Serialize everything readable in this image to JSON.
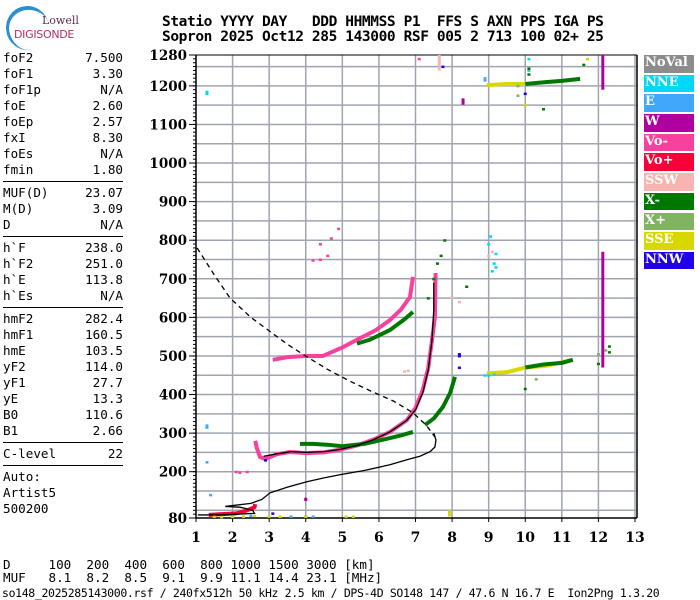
{
  "logo": {
    "line1": "Lowell",
    "line2": "DIGISONDE"
  },
  "header": {
    "line1": "Statio YYYY DAY   DDD HHMMSS P1  FFS S AXN PPS IGA PS",
    "line2": "Sopron 2025 Oct12 285 143000 RSF 005 2 713 100 02+ 25"
  },
  "params": {
    "group1": [
      {
        "label": "foF2",
        "value": "7.500"
      },
      {
        "label": "foF1",
        "value": "3.30"
      },
      {
        "label": "foF1p",
        "value": "N/A"
      },
      {
        "label": "foE",
        "value": "2.60"
      },
      {
        "label": "foEp",
        "value": "2.57"
      },
      {
        "label": "fxI",
        "value": "8.30"
      },
      {
        "label": "foEs",
        "value": "N/A"
      },
      {
        "label": "fmin",
        "value": "1.80"
      }
    ],
    "group2": [
      {
        "label": "MUF(D)",
        "value": "23.07"
      },
      {
        "label": "M(D)",
        "value": "3.09"
      },
      {
        "label": "D",
        "value": "N/A"
      }
    ],
    "group3": [
      {
        "label": "h`F",
        "value": "238.0"
      },
      {
        "label": "h`F2",
        "value": "251.0"
      },
      {
        "label": "h`E",
        "value": "113.8"
      },
      {
        "label": "h`Es",
        "value": "N/A"
      }
    ],
    "group4": [
      {
        "label": "hmF2",
        "value": "282.4"
      },
      {
        "label": "hmF1",
        "value": "160.5"
      },
      {
        "label": "hmE",
        "value": "103.5"
      },
      {
        "label": "yF2",
        "value": "114.0"
      },
      {
        "label": "yF1",
        "value": "27.7"
      },
      {
        "label": "yE",
        "value": "13.3"
      },
      {
        "label": "B0",
        "value": "110.6"
      },
      {
        "label": "B1",
        "value": "2.66"
      }
    ],
    "group5": [
      {
        "label": "C-level",
        "value": "22"
      }
    ],
    "auto": [
      "Auto:",
      "Artist5",
      "500200"
    ]
  },
  "legend": [
    {
      "label": "NoVal",
      "color": "#8c8c8c"
    },
    {
      "label": "NNE",
      "color": "#00d8f8"
    },
    {
      "label": "E",
      "color": "#40a8f8"
    },
    {
      "label": "W",
      "color": "#b000a0"
    },
    {
      "label": "Vo-",
      "color": "#f8409c"
    },
    {
      "label": "Vo+",
      "color": "#f80038"
    },
    {
      "label": "SSW",
      "color": "#f8b4b0"
    },
    {
      "label": "X-",
      "color": "#007800"
    },
    {
      "label": "X+",
      "color": "#80b460"
    },
    {
      "label": "SSE",
      "color": "#d8d800"
    },
    {
      "label": "NNW",
      "color": "#2000e8"
    }
  ],
  "muf_table": {
    "row1": "D     100  200  400  600  800 1000 1500 3000 [km]",
    "row2": "MUF   8.1  8.2  8.5  9.1  9.9 11.1 14.4 23.1 [MHz]"
  },
  "footer": "so148_2025285143000.rsf / 240fx512h 50 kHz 2.5 km / DPS-4D SO148 147 / 47.6 N 16.7 E  Ion2Png 1.3.20",
  "chart_data": {
    "type": "scatter",
    "xlim": [
      1,
      13
    ],
    "ylim": [
      80,
      1280
    ],
    "x_ticks": [
      "1",
      "2",
      "3",
      "4",
      "5",
      "6",
      "7",
      "8",
      "9",
      "10",
      "11",
      "12",
      "13"
    ],
    "y_ticks": [
      "80",
      "200",
      "300",
      "400",
      "500",
      "600",
      "700",
      "800",
      "900",
      "1000",
      "1100",
      "1200",
      "1280"
    ],
    "grid": true,
    "legend_placement": "right",
    "series": [
      {
        "color": "Vo-",
        "kind": "trace",
        "points": [
          [
            2.62,
            280
          ],
          [
            2.66,
            262
          ],
          [
            2.75,
            238
          ],
          [
            2.89,
            233
          ],
          [
            3.2,
            245
          ],
          [
            3.57,
            251
          ],
          [
            4.02,
            248
          ],
          [
            4.5,
            250
          ],
          [
            4.93,
            257
          ],
          [
            5.4,
            268
          ],
          [
            5.84,
            283
          ],
          [
            6.3,
            303
          ],
          [
            6.77,
            334
          ],
          [
            7.0,
            365
          ],
          [
            7.2,
            412
          ],
          [
            7.35,
            470
          ],
          [
            7.45,
            540
          ],
          [
            7.53,
            601
          ],
          [
            7.55,
            715
          ]
        ]
      },
      {
        "color": "Vo-",
        "kind": "trace",
        "points": [
          [
            3.1,
            490
          ],
          [
            3.5,
            497
          ],
          [
            4.0,
            500
          ],
          [
            4.47,
            500
          ],
          [
            5.0,
            522
          ],
          [
            5.4,
            542
          ],
          [
            5.9,
            566
          ],
          [
            6.3,
            593
          ],
          [
            6.6,
            620
          ],
          [
            6.85,
            653
          ],
          [
            6.93,
            705
          ]
        ]
      },
      {
        "color": "X-",
        "kind": "trace",
        "points": [
          [
            3.84,
            272
          ],
          [
            4.2,
            272
          ],
          [
            4.58,
            270
          ],
          [
            5.0,
            266
          ],
          [
            5.6,
            272
          ],
          [
            6.2,
            285
          ],
          [
            6.6,
            294
          ],
          [
            6.93,
            303
          ]
        ]
      },
      {
        "color": "X-",
        "kind": "trace",
        "points": [
          [
            7.26,
            321
          ],
          [
            7.5,
            338
          ],
          [
            7.75,
            368
          ],
          [
            7.95,
            405
          ],
          [
            8.08,
            446
          ]
        ]
      },
      {
        "color": "X-",
        "kind": "trace",
        "points": [
          [
            5.4,
            532
          ],
          [
            5.75,
            542
          ],
          [
            6.3,
            567
          ],
          [
            6.7,
            595
          ],
          [
            6.93,
            614
          ]
        ]
      },
      {
        "color": "Vo+",
        "kind": "trace",
        "points": [
          [
            1.35,
            88
          ],
          [
            1.7,
            90
          ],
          [
            2.1,
            92
          ],
          [
            2.4,
            100
          ],
          [
            2.6,
            108
          ],
          [
            2.62,
            116
          ]
        ]
      },
      {
        "color": "SSE",
        "kind": "trace",
        "points": [
          [
            8.95,
            455
          ],
          [
            9.5,
            458
          ],
          [
            10.0,
            470
          ],
          [
            10.6,
            475
          ],
          [
            11.2,
            488
          ]
        ]
      },
      {
        "color": "X-",
        "kind": "trace",
        "points": [
          [
            10.0,
            470
          ],
          [
            10.5,
            478
          ],
          [
            11.0,
            482
          ],
          [
            11.3,
            490
          ]
        ]
      },
      {
        "color": "SSE",
        "kind": "trace",
        "points": [
          [
            8.95,
            1202
          ],
          [
            9.5,
            1205
          ],
          [
            10.0,
            1205
          ]
        ]
      },
      {
        "color": "X-",
        "kind": "trace",
        "points": [
          [
            10.0,
            1205
          ],
          [
            10.6,
            1210
          ],
          [
            11.0,
            1213
          ],
          [
            11.5,
            1218
          ]
        ]
      },
      {
        "color": "W",
        "kind": "vbar",
        "points": [
          [
            12.12,
            470
          ],
          [
            12.12,
            770
          ]
        ]
      },
      {
        "color": "W",
        "kind": "vbar",
        "points": [
          [
            12.12,
            1190
          ],
          [
            12.12,
            1280
          ]
        ]
      },
      {
        "color": "SSW",
        "kind": "vbar",
        "points": [
          [
            7.65,
            1240
          ],
          [
            7.65,
            1280
          ]
        ]
      },
      {
        "color": "SSE",
        "kind": "vbar",
        "points": [
          [
            7.93,
            84
          ],
          [
            7.93,
            100
          ]
        ]
      },
      {
        "color": "NNE",
        "kind": "dots",
        "points": [
          [
            9.1,
            720
          ],
          [
            9.15,
            740
          ],
          [
            9.2,
            765
          ],
          [
            9.0,
            790
          ],
          [
            9.05,
            810
          ],
          [
            9.2,
            730
          ],
          [
            8.9,
            450
          ],
          [
            9.0,
            450
          ],
          [
            9.15,
            452
          ],
          [
            10.1,
            1240
          ],
          [
            10.1,
            1270
          ],
          [
            1.3,
            1180
          ],
          [
            1.3,
            1185
          ]
        ]
      },
      {
        "color": "E",
        "kind": "dots",
        "points": [
          [
            1.3,
            320
          ],
          [
            1.3,
            315
          ],
          [
            1.4,
            140
          ],
          [
            1.3,
            225
          ],
          [
            2.0,
            84
          ],
          [
            2.5,
            86
          ],
          [
            3.6,
            84
          ],
          [
            4.2,
            84
          ],
          [
            8.9,
            1215
          ],
          [
            8.9,
            1220
          ]
        ]
      },
      {
        "color": "NNW",
        "kind": "dots",
        "points": [
          [
            8.2,
            500
          ],
          [
            8.2,
            505
          ],
          [
            8.2,
            470
          ],
          [
            3.1,
            92
          ],
          [
            4.0,
            84
          ],
          [
            10.0,
            1180
          ],
          [
            7.75,
            1250
          ],
          [
            2.9,
            230
          ]
        ]
      },
      {
        "color": "Vo-",
        "kind": "dots",
        "points": [
          [
            4.9,
            830
          ],
          [
            4.7,
            805
          ],
          [
            4.4,
            790
          ],
          [
            4.2,
            748
          ],
          [
            4.4,
            750
          ],
          [
            4.6,
            760
          ],
          [
            2.1,
            200
          ],
          [
            2.2,
            198
          ],
          [
            2.4,
            200
          ],
          [
            7.1,
            1270
          ]
        ]
      },
      {
        "color": "X-",
        "kind": "dots",
        "points": [
          [
            7.6,
            740
          ],
          [
            7.7,
            760
          ],
          [
            7.8,
            800
          ],
          [
            7.5,
            700
          ],
          [
            7.35,
            650
          ],
          [
            8.4,
            680
          ],
          [
            10.1,
            1245
          ],
          [
            10.1,
            1230
          ],
          [
            10.5,
            1140
          ],
          [
            11.6,
            1255
          ],
          [
            12.3,
            510
          ],
          [
            12.3,
            525
          ],
          [
            10.0,
            415
          ],
          [
            12.0,
            480
          ]
        ]
      },
      {
        "color": "X+",
        "kind": "dots",
        "points": [
          [
            9.8,
            1175
          ],
          [
            9.8,
            1200
          ],
          [
            12.0,
            505
          ],
          [
            12.2,
            515
          ],
          [
            10.3,
            440
          ]
        ]
      },
      {
        "color": "SSW",
        "kind": "dots",
        "points": [
          [
            8.2,
            640
          ],
          [
            8.0,
            650
          ],
          [
            6.7,
            460
          ],
          [
            6.8,
            462
          ],
          [
            9.1,
            770
          ],
          [
            9.0,
            760
          ]
        ]
      },
      {
        "color": "SSE",
        "kind": "dots",
        "points": [
          [
            1.5,
            84
          ],
          [
            1.7,
            83
          ],
          [
            2.0,
            84
          ],
          [
            2.3,
            84
          ],
          [
            2.6,
            86
          ],
          [
            3.0,
            84
          ],
          [
            3.3,
            84
          ],
          [
            4.0,
            84
          ],
          [
            5.1,
            84
          ],
          [
            5.3,
            84
          ],
          [
            11.7,
            1270
          ],
          [
            10.0,
            1150
          ]
        ]
      },
      {
        "color": "W",
        "kind": "dots",
        "points": [
          [
            4.0,
            130
          ],
          [
            4.0,
            128
          ],
          [
            8.3,
            1155
          ],
          [
            8.3,
            1160
          ],
          [
            8.3,
            1165
          ]
        ]
      }
    ],
    "model_curves": [
      {
        "style": "solid",
        "points": [
          [
            2.85,
            240
          ],
          [
            3.2,
            246
          ],
          [
            3.6,
            252
          ],
          [
            4.0,
            250
          ],
          [
            4.5,
            252
          ],
          [
            4.95,
            258
          ],
          [
            5.4,
            268
          ],
          [
            5.85,
            283
          ],
          [
            6.3,
            303
          ],
          [
            6.75,
            332
          ],
          [
            7.0,
            360
          ],
          [
            7.2,
            405
          ],
          [
            7.35,
            465
          ],
          [
            7.45,
            540
          ],
          [
            7.5,
            620
          ],
          [
            7.5,
            690
          ]
        ]
      },
      {
        "style": "solid",
        "points": [
          [
            1.05,
            88
          ],
          [
            1.7,
            88
          ],
          [
            2.6,
            92
          ],
          [
            2.55,
            100
          ],
          [
            2.2,
            108
          ],
          [
            1.8,
            110
          ],
          [
            2.5,
            118
          ],
          [
            2.8,
            128
          ],
          [
            3.02,
            145
          ],
          [
            3.5,
            160
          ],
          [
            4.03,
            174
          ],
          [
            4.5,
            184
          ],
          [
            4.93,
            192
          ],
          [
            5.6,
            203
          ],
          [
            6.3,
            218
          ],
          [
            6.8,
            232
          ],
          [
            7.12,
            240
          ],
          [
            7.4,
            252
          ],
          [
            7.53,
            264
          ],
          [
            7.56,
            282
          ],
          [
            7.5,
            300
          ]
        ]
      },
      {
        "style": "dashed",
        "points": [
          [
            1.03,
            780
          ],
          [
            1.5,
            710
          ],
          [
            1.93,
            650
          ],
          [
            2.5,
            600
          ],
          [
            3.0,
            565
          ],
          [
            3.5,
            530
          ],
          [
            4.03,
            498
          ],
          [
            4.6,
            465
          ],
          [
            5.2,
            435
          ],
          [
            5.8,
            408
          ],
          [
            6.4,
            383
          ],
          [
            6.93,
            353
          ],
          [
            7.3,
            320
          ],
          [
            7.53,
            290
          ]
        ]
      }
    ]
  }
}
